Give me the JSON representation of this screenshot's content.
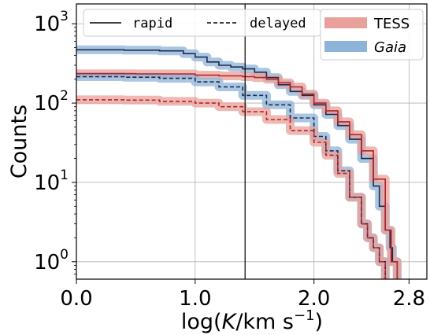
{
  "chart_data": {
    "type": "line",
    "xlabel_main": "log(",
    "xlabel_var": "K",
    "xlabel_unit": "/km s",
    "xlabel_exp": "−1",
    "xlabel_close": ")",
    "ylabel": "Counts",
    "x_scale": "linear",
    "y_scale": "log",
    "xlim": [
      0.0,
      2.95
    ],
    "ylim_log10": [
      -0.22,
      3.25
    ],
    "x_ticks": [
      {
        "value": 0.0,
        "label": "0.0"
      },
      {
        "value": 1.0,
        "label": "1.0"
      },
      {
        "value": 2.0,
        "label": "2.0"
      },
      {
        "value": 2.8,
        "label": "2.8"
      }
    ],
    "y_ticks": [
      {
        "exp": 0,
        "base": "10",
        "power": "0"
      },
      {
        "exp": 1,
        "base": "10",
        "power": "1"
      },
      {
        "exp": 2,
        "base": "10",
        "power": "2"
      },
      {
        "exp": 3,
        "base": "10",
        "power": "3"
      }
    ],
    "vline_x": 1.42,
    "grid": true,
    "legend_line_styles": [
      {
        "label": "rapid",
        "style": "solid"
      },
      {
        "label": "delayed",
        "style": "dashed"
      }
    ],
    "legend_bands": [
      {
        "label": "TESS",
        "color": "#e8a09a",
        "italic": false
      },
      {
        "label": "Gaia",
        "color": "#8eb3d9",
        "italic": true
      }
    ],
    "colors": {
      "tess_line": "#b5232a",
      "gaia_line": "#1c2c4c",
      "tess_band": "#e8a09a",
      "gaia_band": "#8eb3d9"
    },
    "series": [
      {
        "name": "Gaia rapid",
        "style": "solid",
        "color_key": "gaia",
        "x": [
          0.0,
          0.4,
          0.7,
          0.9,
          1.0,
          1.1,
          1.2,
          1.3,
          1.4,
          1.5,
          1.6,
          1.7,
          1.8,
          1.9,
          2.0,
          2.1,
          2.2,
          2.3,
          2.4,
          2.5,
          2.55,
          2.6,
          2.64,
          2.66,
          2.68,
          2.7
        ],
        "y": [
          470,
          465,
          455,
          420,
          380,
          330,
          300,
          285,
          270,
          245,
          210,
          170,
          140,
          125,
          95,
          72,
          52,
          35,
          20,
          9,
          5,
          2.5,
          1.5,
          1.0,
          1.0,
          0.5
        ]
      },
      {
        "name": "TESS rapid",
        "style": "solid",
        "color_key": "tess",
        "x": [
          0.0,
          0.5,
          1.0,
          1.2,
          1.4,
          1.5,
          1.6,
          1.7,
          1.8,
          1.9,
          2.0,
          2.1,
          2.2,
          2.3,
          2.4,
          2.5,
          2.6,
          2.65,
          2.7
        ],
        "y": [
          235,
          233,
          225,
          220,
          215,
          210,
          200,
          180,
          160,
          130,
          100,
          80,
          58,
          40,
          25,
          11,
          2.5,
          1.0,
          0.5
        ]
      },
      {
        "name": "Gaia delayed",
        "style": "dashed",
        "color_key": "gaia",
        "x": [
          0.0,
          0.4,
          0.7,
          1.0,
          1.2,
          1.4,
          1.6,
          1.8,
          2.0,
          2.1,
          2.2,
          2.3,
          2.4,
          2.45,
          2.5,
          2.55,
          2.58,
          2.6
        ],
        "y": [
          215,
          212,
          205,
          185,
          160,
          125,
          95,
          65,
          38,
          25,
          14,
          6.5,
          3.0,
          2.0,
          1.5,
          1.0,
          1.0,
          0.5
        ]
      },
      {
        "name": "TESS delayed",
        "style": "dashed",
        "color_key": "tess",
        "x": [
          0.0,
          0.4,
          0.7,
          1.0,
          1.2,
          1.4,
          1.6,
          1.8,
          2.0,
          2.1,
          2.2,
          2.3,
          2.4,
          2.45,
          2.5,
          2.55,
          2.58,
          2.6
        ],
        "y": [
          110,
          109,
          105,
          100,
          90,
          78,
          62,
          45,
          32,
          22,
          13,
          6.5,
          3.0,
          2.0,
          1.5,
          1.0,
          1.0,
          0.5
        ]
      }
    ]
  }
}
